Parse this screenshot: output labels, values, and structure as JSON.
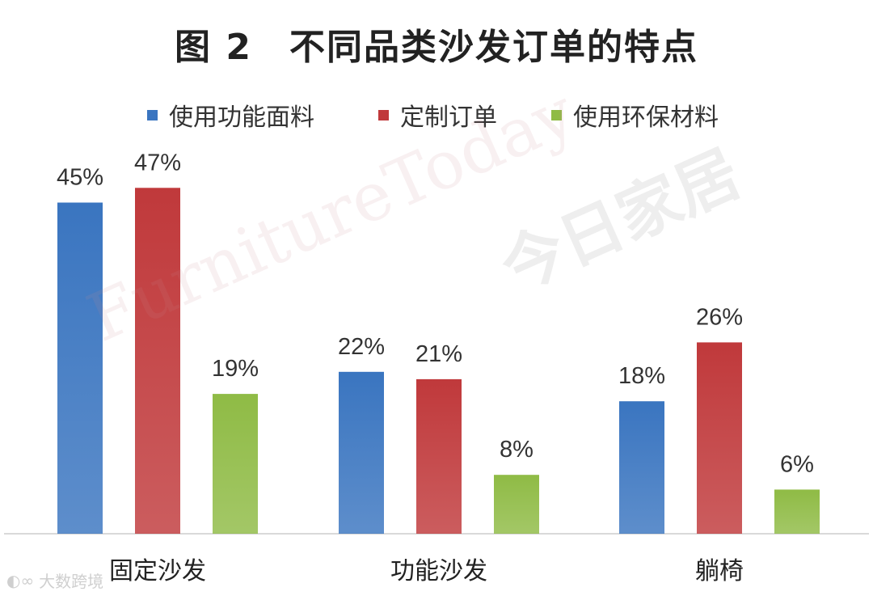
{
  "chart_data": {
    "type": "bar",
    "title": "图 2　不同品类沙发订单的特点",
    "categories": [
      "固定沙发",
      "功能沙发",
      "躺椅"
    ],
    "series": [
      {
        "name": "使用功能面料",
        "color": "#3a75c0",
        "values": [
          45,
          22,
          18
        ]
      },
      {
        "name": "定制订单",
        "color": "#c0393b",
        "values": [
          47,
          21,
          26
        ]
      },
      {
        "name": "使用环保材料",
        "color": "#8fbb45",
        "values": [
          19,
          8,
          6
        ]
      }
    ],
    "value_suffix": "%",
    "xlabel": "",
    "ylabel": "",
    "ylim": [
      0,
      50
    ],
    "grid": false,
    "legend": "top-center"
  },
  "watermark": {
    "latin": "FurnitureToday",
    "chinese": "今日家居",
    "source": "大数跨境"
  }
}
